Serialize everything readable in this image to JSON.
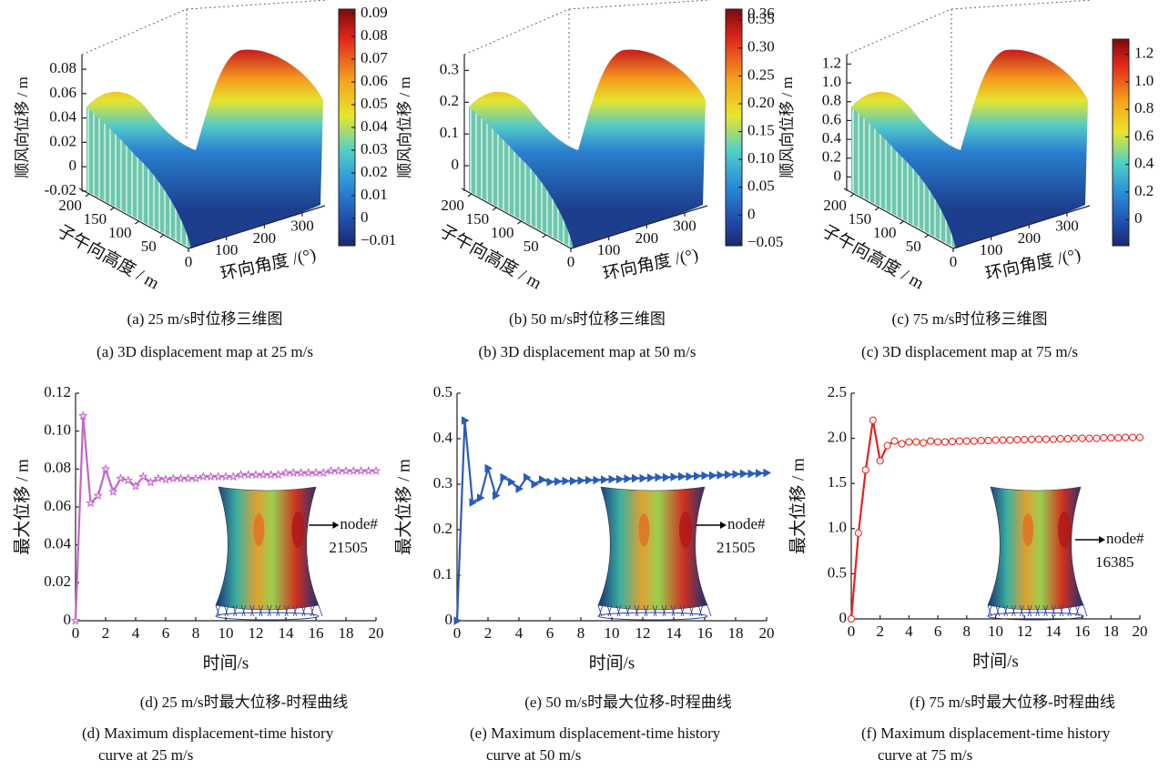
{
  "chart_data": [
    {
      "type": "surface",
      "zlabel": "顺风向位移 / m",
      "ylabel": "子午向高度 / m",
      "xlabel": "环向角度 /(°)",
      "xlim": [
        0,
        360
      ],
      "xticks": [
        0,
        100,
        200,
        300
      ],
      "ylim": [
        0,
        220
      ],
      "yticks": [
        50,
        100,
        150,
        200
      ],
      "zlim": [
        -0.02,
        0.092
      ],
      "zticks": [
        -0.02,
        0,
        0.02,
        0.04,
        0.06,
        0.08
      ],
      "clim": [
        -0.012,
        0.092
      ],
      "cticks": [
        {
          "value": -0.01,
          "label": "−0.01"
        },
        0,
        0.01,
        0.02,
        0.03,
        0.04,
        0.05,
        0.06,
        0.07,
        0.08,
        0.09
      ],
      "caption_cn": "(a) 25 m/s时位移三维图",
      "caption_en": [
        "(a) 3D displacement map at 25 m/s"
      ]
    },
    {
      "type": "surface",
      "zlabel": "顺风向位移 / m",
      "ylabel": "子午向高度 / m",
      "xlabel": "环向角度 /(°)",
      "xlim": [
        0,
        360
      ],
      "xticks": [
        0,
        100,
        200,
        300
      ],
      "ylim": [
        0,
        220
      ],
      "yticks": [
        50,
        100,
        150,
        200
      ],
      "zlim": [
        -0.08,
        0.35
      ],
      "zticks": [
        0,
        0.1,
        0.2,
        0.3
      ],
      "clim": [
        -0.055,
        0.37
      ],
      "cticks": [
        {
          "value": -0.05,
          "label": "−0.05"
        },
        0,
        0.05,
        {
          "value": 0.1,
          "label": "0.10"
        },
        0.15,
        {
          "value": 0.2,
          "label": "0.20"
        },
        0.25,
        {
          "value": 0.3,
          "label": "0.30"
        },
        0.35,
        {
          "value": 0.36,
          "label": "0.36"
        }
      ],
      "caption_cn": "(b) 50 m/s时位移三维图",
      "caption_en": [
        "(b)  3D displacement map at 50 m/s"
      ]
    },
    {
      "type": "surface",
      "zlabel": "顺风向位移 / m",
      "ylabel": "子午向高度 / m",
      "xlabel": "环向角度 /(°)",
      "xlim": [
        0,
        360
      ],
      "xticks": [
        0,
        100,
        200,
        300
      ],
      "ylim": [
        0,
        220
      ],
      "yticks": [
        50,
        100,
        150,
        200
      ],
      "zlim": [
        -0.15,
        1.3
      ],
      "zticks": [
        0,
        0.2,
        0.4,
        0.6,
        0.8,
        {
          "value": 1,
          "label": "1.0"
        },
        1.2
      ],
      "clim": [
        -0.19,
        1.31
      ],
      "cticks": [
        0,
        0.2,
        0.4,
        0.6,
        0.8,
        {
          "value": 1,
          "label": "1.0"
        },
        1.2
      ],
      "caption_cn": "(c) 75 m/s时位移三维图",
      "caption_en": [
        "(c) 3D displacement map at 75 m/s"
      ]
    },
    {
      "type": "line",
      "xlabel": "时间/s",
      "ylabel": "最大位移 / m",
      "x": [
        0,
        0.5,
        1,
        1.5,
        2,
        2.5,
        3,
        3.5,
        4,
        4.5,
        5,
        5.5,
        6,
        6.5,
        7,
        7.5,
        8,
        8.5,
        9,
        9.5,
        10,
        10.5,
        11,
        11.5,
        12,
        12.5,
        13,
        13.5,
        14,
        14.5,
        15,
        15.5,
        16,
        16.5,
        17,
        17.5,
        18,
        18.5,
        19,
        19.5,
        20
      ],
      "xlim": [
        0,
        20
      ],
      "xticks": [
        0,
        2,
        4,
        6,
        8,
        10,
        12,
        14,
        16,
        18,
        20
      ],
      "ylim": [
        0,
        0.12
      ],
      "yticks": [
        0,
        0.02,
        0.04,
        0.06,
        0.08,
        {
          "value": 0.1,
          "label": "0.10"
        },
        0.12
      ],
      "series": [
        {
          "color": "#c266c8",
          "marker": "star",
          "values": [
            0,
            0.108,
            0.062,
            0.066,
            0.08,
            0.068,
            0.075,
            0.074,
            0.071,
            0.076,
            0.073,
            0.075,
            0.0745,
            0.075,
            0.075,
            0.075,
            0.075,
            0.076,
            0.076,
            0.076,
            0.076,
            0.076,
            0.077,
            0.077,
            0.077,
            0.077,
            0.077,
            0.077,
            0.078,
            0.078,
            0.078,
            0.078,
            0.078,
            0.078,
            0.079,
            0.079,
            0.079,
            0.079,
            0.079,
            0.079,
            0.079
          ]
        }
      ],
      "annotation": [
        "node#",
        "21505"
      ],
      "caption_cn": "(d) 25 m/s时最大位移-时程曲线",
      "caption_en": [
        "(d) Maximum displacement-time history",
        "curve at 25 m/s"
      ]
    },
    {
      "type": "line",
      "xlabel": "时间/s",
      "ylabel": "最大位移 / m",
      "x": [
        0,
        0.5,
        1,
        1.5,
        2,
        2.5,
        3,
        3.5,
        4,
        4.5,
        5,
        5.5,
        6,
        6.5,
        7,
        7.5,
        8,
        8.5,
        9,
        9.5,
        10,
        10.5,
        11,
        11.5,
        12,
        12.5,
        13,
        13.5,
        14,
        14.5,
        15,
        15.5,
        16,
        16.5,
        17,
        17.5,
        18,
        18.5,
        19,
        19.5,
        20
      ],
      "xlim": [
        0,
        20
      ],
      "xticks": [
        0,
        2,
        4,
        6,
        8,
        10,
        12,
        14,
        16,
        18,
        20
      ],
      "ylim": [
        0,
        0.5
      ],
      "yticks": [
        0,
        0.1,
        0.2,
        0.3,
        0.4,
        0.5
      ],
      "series": [
        {
          "color": "#2a5cb8",
          "marker": "triangle",
          "values": [
            0,
            0.44,
            0.26,
            0.27,
            0.335,
            0.275,
            0.315,
            0.305,
            0.29,
            0.315,
            0.3,
            0.31,
            0.305,
            0.306,
            0.307,
            0.307,
            0.308,
            0.309,
            0.309,
            0.31,
            0.311,
            0.311,
            0.312,
            0.313,
            0.313,
            0.314,
            0.315,
            0.315,
            0.316,
            0.317,
            0.317,
            0.318,
            0.319,
            0.319,
            0.32,
            0.321,
            0.322,
            0.323,
            0.323,
            0.324,
            0.325
          ]
        }
      ],
      "annotation": [
        "node#",
        "21505"
      ],
      "caption_cn": "(e) 50 m/s时最大位移-时程曲线",
      "caption_en": [
        "(e) Maximum displacement-time history",
        "curve at 50 m/s"
      ]
    },
    {
      "type": "line",
      "xlabel": "时间/s",
      "ylabel": "最大位移 / m",
      "x": [
        0,
        0.5,
        1,
        1.5,
        2,
        2.5,
        3,
        3.5,
        4,
        4.5,
        5,
        5.5,
        6,
        6.5,
        7,
        7.5,
        8,
        8.5,
        9,
        9.5,
        10,
        10.5,
        11,
        11.5,
        12,
        12.5,
        13,
        13.5,
        14,
        14.5,
        15,
        15.5,
        16,
        16.5,
        17,
        17.5,
        18,
        18.5,
        19,
        19.5,
        20
      ],
      "xlim": [
        0,
        20
      ],
      "xticks": [
        0,
        2,
        4,
        6,
        8,
        10,
        12,
        14,
        16,
        18,
        20
      ],
      "ylim": [
        0,
        2.5
      ],
      "yticks": [
        0,
        0.5,
        {
          "value": 1,
          "label": "1.0"
        },
        1.5,
        {
          "value": 2,
          "label": "2.0"
        },
        2.5
      ],
      "series": [
        {
          "color": "#e02424",
          "marker": "circle",
          "values": [
            0,
            0.95,
            1.65,
            2.2,
            1.75,
            1.92,
            1.97,
            1.94,
            1.96,
            1.96,
            1.95,
            1.97,
            1.96,
            1.96,
            1.965,
            1.97,
            1.97,
            1.97,
            1.975,
            1.975,
            1.98,
            1.98,
            1.98,
            1.985,
            1.985,
            1.99,
            1.99,
            1.99,
            1.99,
            1.995,
            1.995,
            2.0,
            2.0,
            2.0,
            2.0,
            2.005,
            2.005,
            2.005,
            2.01,
            2.01,
            2.01
          ]
        }
      ],
      "annotation": [
        "node#",
        "16385"
      ],
      "caption_cn": "(f) 75 m/s时最大位移-时程曲线",
      "caption_en": [
        "(f) Maximum displacement-time history",
        "curve at 75 m/s"
      ]
    }
  ]
}
